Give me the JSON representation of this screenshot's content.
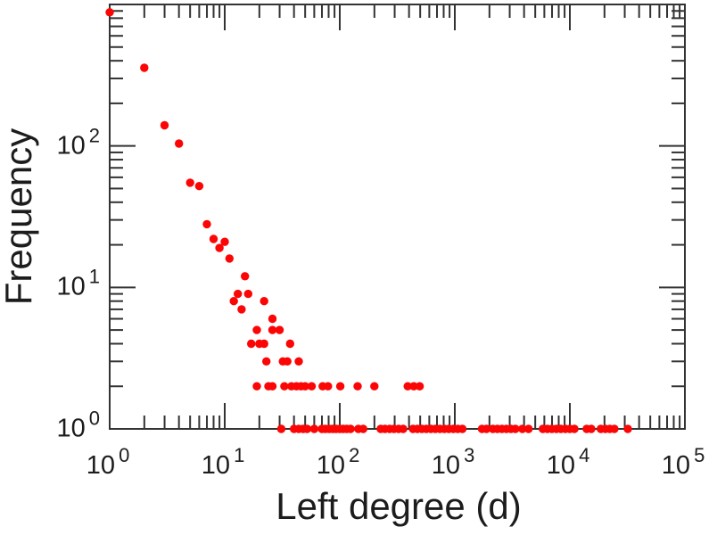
{
  "chart_data": {
    "type": "scatter",
    "title": "",
    "xlabel": "Left degree (d)",
    "ylabel": "Frequency",
    "x_scale": "log",
    "y_scale": "log",
    "xlim": [
      1,
      100000
    ],
    "ylim": [
      1,
      1000
    ],
    "tick_base": "10",
    "x_tick_exponents": [
      0,
      1,
      2,
      3,
      4,
      5
    ],
    "y_tick_exponents": [
      0,
      1,
      2
    ],
    "grid": false,
    "legend": null,
    "marker": "filled-circle",
    "marker_color": "#fb0505",
    "axis_color": "#333333",
    "text_color": "#1c1c1c",
    "background_color": "#ffffff",
    "points": [
      [
        1,
        880
      ],
      [
        2,
        357
      ],
      [
        3,
        140
      ],
      [
        4,
        104
      ],
      [
        5,
        55
      ],
      [
        6,
        52
      ],
      [
        7,
        28
      ],
      [
        8,
        22
      ],
      [
        10,
        21
      ],
      [
        9,
        19
      ],
      [
        11,
        16
      ],
      [
        15,
        12
      ],
      [
        13,
        9
      ],
      [
        16,
        9
      ],
      [
        12,
        8
      ],
      [
        22,
        8
      ],
      [
        14,
        7
      ],
      [
        26,
        6
      ],
      [
        19,
        5
      ],
      [
        26,
        5
      ],
      [
        30,
        5
      ],
      [
        17,
        4
      ],
      [
        20,
        4
      ],
      [
        22,
        4
      ],
      [
        37,
        4
      ],
      [
        23,
        3
      ],
      [
        32,
        3
      ],
      [
        35,
        3
      ],
      [
        44,
        3
      ],
      [
        19,
        2
      ],
      [
        24,
        2
      ],
      [
        26,
        2
      ],
      [
        33,
        2
      ],
      [
        38,
        2
      ],
      [
        42,
        2
      ],
      [
        46,
        2
      ],
      [
        50,
        2
      ],
      [
        57,
        2
      ],
      [
        71,
        2
      ],
      [
        79,
        2
      ],
      [
        101,
        2
      ],
      [
        143,
        2
      ],
      [
        200,
        2
      ],
      [
        390,
        2
      ],
      [
        440,
        2
      ],
      [
        495,
        2
      ],
      [
        31,
        1
      ],
      [
        40,
        1
      ],
      [
        44,
        1
      ],
      [
        48,
        1
      ],
      [
        52,
        1
      ],
      [
        60,
        1
      ],
      [
        70,
        1
      ],
      [
        75,
        1
      ],
      [
        81,
        1
      ],
      [
        87,
        1
      ],
      [
        93,
        1
      ],
      [
        100,
        1
      ],
      [
        107,
        1
      ],
      [
        115,
        1
      ],
      [
        124,
        1
      ],
      [
        145,
        1
      ],
      [
        160,
        1
      ],
      [
        227,
        1
      ],
      [
        247,
        1
      ],
      [
        271,
        1
      ],
      [
        296,
        1
      ],
      [
        325,
        1
      ],
      [
        356,
        1
      ],
      [
        433,
        1
      ],
      [
        473,
        1
      ],
      [
        518,
        1
      ],
      [
        566,
        1
      ],
      [
        620,
        1
      ],
      [
        678,
        1
      ],
      [
        742,
        1
      ],
      [
        811,
        1
      ],
      [
        888,
        1
      ],
      [
        971,
        1
      ],
      [
        1063,
        1
      ],
      [
        1163,
        1
      ],
      [
        1723,
        1
      ],
      [
        1885,
        1
      ],
      [
        2142,
        1
      ],
      [
        2344,
        1
      ],
      [
        2565,
        1
      ],
      [
        2807,
        1
      ],
      [
        3072,
        1
      ],
      [
        3362,
        1
      ],
      [
        3869,
        1
      ],
      [
        4378,
        1
      ],
      [
        5824,
        1
      ],
      [
        6374,
        1
      ],
      [
        6975,
        1
      ],
      [
        7633,
        1
      ],
      [
        8353,
        1
      ],
      [
        9141,
        1
      ],
      [
        10004,
        1
      ],
      [
        10948,
        1
      ],
      [
        14020,
        1
      ],
      [
        15343,
        1
      ],
      [
        18591,
        1
      ],
      [
        20346,
        1
      ],
      [
        22266,
        1
      ],
      [
        24368,
        1
      ],
      [
        31900,
        1
      ]
    ]
  }
}
